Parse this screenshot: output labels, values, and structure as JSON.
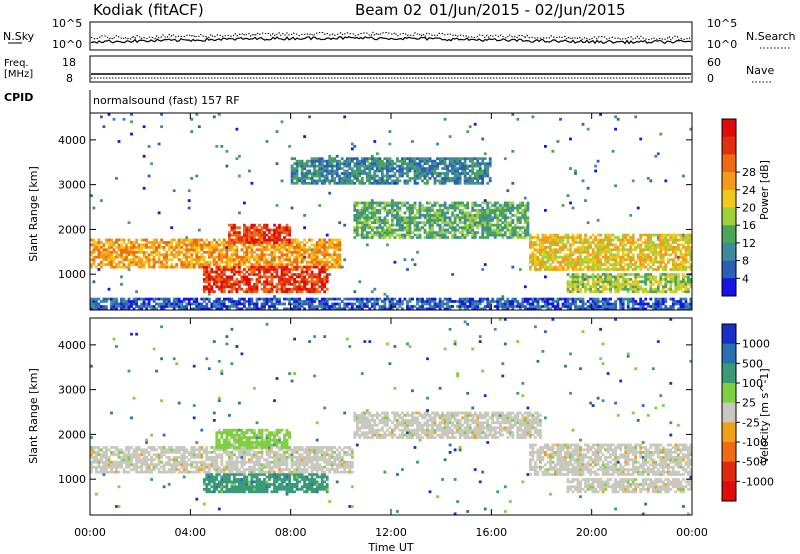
{
  "header": {
    "radar": "Kodiak (fitACF)",
    "beam": "Beam 02",
    "date_range": "01/Jun/2015 - 02/Jun/2015"
  },
  "panels": {
    "nsky_label": "N.Sky",
    "nsearch_label": "N.Search",
    "nsky_ticks": [
      "10^5",
      "10^0"
    ],
    "nsearch_ticks": [
      "10^5",
      "10^0"
    ],
    "freq_label_1": "Freq.",
    "freq_label_2": "[MHz]",
    "freq_ticks": [
      "18",
      "8"
    ],
    "nave_label": "Nave",
    "nave_ticks": [
      "60",
      "0"
    ],
    "cpid_label": "CPID",
    "cpid_text": "normalsound (fast) 157 RF"
  },
  "chart_data": [
    {
      "type": "heatmap",
      "name": "Power",
      "ylabel": "Slant Range [km]",
      "xlabel": "Time UT",
      "x_ticks": [
        "00:00",
        "04:00",
        "08:00",
        "12:00",
        "16:00",
        "20:00",
        "00:00"
      ],
      "x_hours": [
        0,
        4,
        8,
        12,
        16,
        20,
        24
      ],
      "y_ticks": [
        1000,
        2000,
        3000,
        4000
      ],
      "ylim": [
        200,
        4600
      ],
      "colorbar": {
        "label": "Power [dB]",
        "ticks": [
          "4",
          "8",
          "12",
          "16",
          "20",
          "24",
          "28"
        ],
        "colors": [
          "#1414e6",
          "#2b5fb5",
          "#3d8a9c",
          "#4aa55a",
          "#9ed13a",
          "#f2c81c",
          "#f39a1a",
          "#f06a14",
          "#e03010",
          "#e00a0a"
        ]
      },
      "regions": [
        {
          "t0": 0.0,
          "t1": 10.0,
          "r0": 1150,
          "r1": 1800,
          "level": 6
        },
        {
          "t0": 4.5,
          "t1": 9.5,
          "r0": 600,
          "r1": 1200,
          "level": 8
        },
        {
          "t0": 5.5,
          "t1": 8.0,
          "r0": 1700,
          "r1": 2100,
          "level": 8
        },
        {
          "t0": 10.5,
          "t1": 17.5,
          "r0": 1800,
          "r1": 2600,
          "level": 3
        },
        {
          "t0": 17.5,
          "t1": 24.0,
          "r0": 1100,
          "r1": 1900,
          "level": 5
        },
        {
          "t0": 19.0,
          "t1": 24.0,
          "r0": 600,
          "r1": 1000,
          "level": 4
        },
        {
          "t0": 8.0,
          "t1": 16.0,
          "r0": 3000,
          "r1": 3600,
          "level": 2
        },
        {
          "t0": 0.0,
          "t1": 24.0,
          "r0": 200,
          "r1": 450,
          "level": 1
        }
      ]
    },
    {
      "type": "heatmap",
      "name": "Velocity",
      "ylabel": "Slant Range [km]",
      "xlabel": "Time UT",
      "x_ticks": [
        "00:00",
        "04:00",
        "08:00",
        "12:00",
        "16:00",
        "20:00",
        "00:00"
      ],
      "x_hours": [
        0,
        4,
        8,
        12,
        16,
        20,
        24
      ],
      "y_ticks": [
        1000,
        2000,
        3000,
        4000
      ],
      "ylim": [
        200,
        4600
      ],
      "colorbar": {
        "label": "Velocity [m s^-1]",
        "ticks": [
          "1000",
          "500",
          "100",
          "25",
          "-25",
          "-100",
          "-500",
          "-1000"
        ],
        "colors": [
          "#1a2fc8",
          "#2a6fb0",
          "#3a9a78",
          "#7fcf3f",
          "#c8c8be",
          "#f0a018",
          "#f06a14",
          "#e02a10",
          "#e00a0a"
        ]
      },
      "regions": [
        {
          "t0": 0.0,
          "t1": 10.5,
          "r0": 1150,
          "r1": 1750,
          "level": 4
        },
        {
          "t0": 4.5,
          "t1": 9.5,
          "r0": 700,
          "r1": 1150,
          "level": 2
        },
        {
          "t0": 5.0,
          "t1": 8.0,
          "r0": 1700,
          "r1": 2100,
          "level": 3
        },
        {
          "t0": 10.5,
          "t1": 18.0,
          "r0": 1900,
          "r1": 2500,
          "level": 4
        },
        {
          "t0": 17.5,
          "t1": 24.0,
          "r0": 1100,
          "r1": 1800,
          "level": 4
        },
        {
          "t0": 19.0,
          "t1": 24.0,
          "r0": 700,
          "r1": 1000,
          "level": 4
        }
      ]
    }
  ]
}
